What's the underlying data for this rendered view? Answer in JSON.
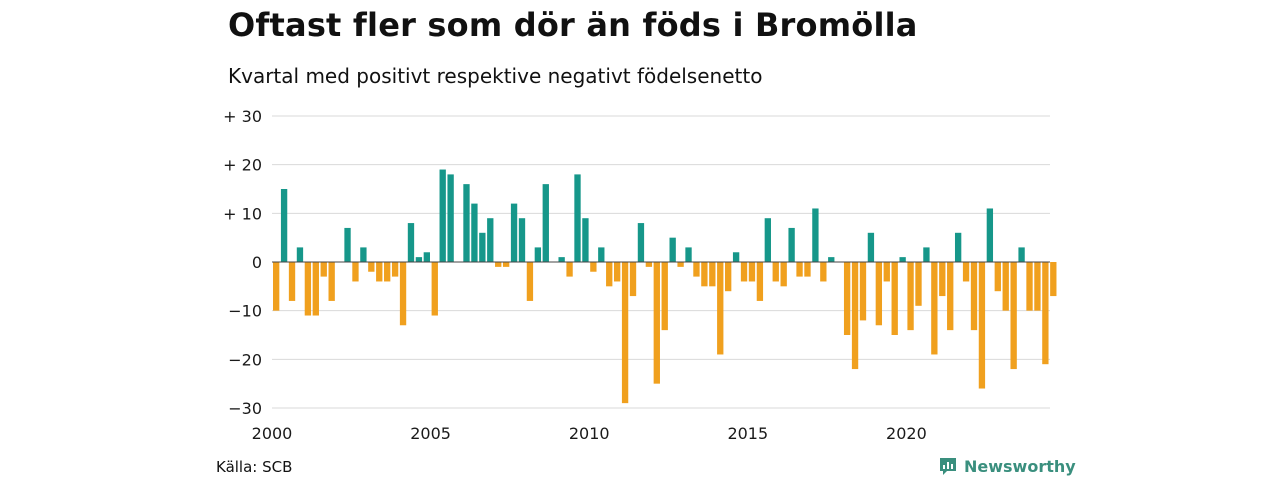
{
  "colors": {
    "positive": "#16978a",
    "negative": "#f0a01e",
    "grid": "#d9d9d9",
    "brand": "#3a8f7e"
  },
  "chart_data": {
    "type": "bar",
    "title": "Oftast fler som dör än föds i Bromölla",
    "subtitle": "Kvartal med positivt respektive negativt födelsenetto",
    "ylim": [
      -30,
      30
    ],
    "yticks": [
      {
        "value": 30,
        "label": "+ 30"
      },
      {
        "value": 20,
        "label": "+ 20"
      },
      {
        "value": 10,
        "label": "+ 10"
      },
      {
        "value": 0,
        "label": "0"
      },
      {
        "value": -10,
        "label": "−10"
      },
      {
        "value": -20,
        "label": "−20"
      },
      {
        "value": -30,
        "label": "−30"
      }
    ],
    "xticks": [
      "2000",
      "2005",
      "2010",
      "2015",
      "2020"
    ],
    "x_start_year": 2000,
    "grid": true,
    "values": [
      -10,
      15,
      -8,
      3,
      -11,
      -11,
      -3,
      -8,
      0,
      7,
      -4,
      3,
      -2,
      -4,
      -4,
      -3,
      -13,
      8,
      1,
      2,
      -11,
      19,
      18,
      0,
      16,
      12,
      6,
      9,
      -1,
      -1,
      12,
      9,
      -8,
      3,
      16,
      0,
      1,
      -3,
      18,
      9,
      -2,
      3,
      -5,
      -4,
      -29,
      -7,
      8,
      -1,
      -25,
      -14,
      5,
      -1,
      3,
      -3,
      -5,
      -5,
      -19,
      -6,
      2,
      -4,
      -4,
      -8,
      9,
      -4,
      -5,
      7,
      -3,
      -3,
      11,
      -4,
      1,
      0,
      -15,
      -22,
      -12,
      6,
      -13,
      -4,
      -15,
      1,
      -14,
      -9,
      3,
      -19,
      -7,
      -14,
      6,
      -4,
      -14,
      -26,
      11,
      -6,
      -10,
      -22,
      3,
      -10,
      -10,
      -21,
      -7
    ]
  },
  "footer": {
    "source": "Källa: SCB",
    "brand": "Newsworthy"
  }
}
